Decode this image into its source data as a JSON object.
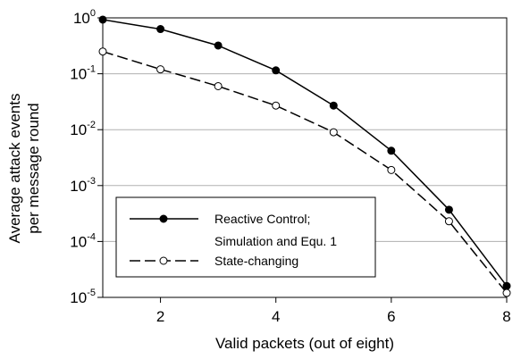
{
  "chart_data": {
    "type": "line",
    "title": "",
    "xlabel": "Valid packets (out of eight)",
    "ylabel_lines": [
      "Average attack events",
      "per message round"
    ],
    "x_ticks": [
      2,
      4,
      6,
      8
    ],
    "xlim": [
      1,
      8
    ],
    "y_scale": "log",
    "ylim": [
      1e-05,
      1
    ],
    "y_ticks": [
      {
        "value": 1,
        "base": "10",
        "exp": "0"
      },
      {
        "value": 0.1,
        "base": "10",
        "exp": "-1"
      },
      {
        "value": 0.01,
        "base": "10",
        "exp": "-2"
      },
      {
        "value": 0.001,
        "base": "10",
        "exp": "-3"
      },
      {
        "value": 0.0001,
        "base": "10",
        "exp": "-4"
      },
      {
        "value": 1e-05,
        "base": "10",
        "exp": "-5"
      }
    ],
    "grid": "horizontal",
    "legend_position": "bottom-left",
    "series": [
      {
        "name_lines": [
          "Reactive Control;",
          "Simulation and Equ. 1"
        ],
        "style": "solid",
        "marker": "filled-circle",
        "x": [
          1,
          2,
          3,
          4,
          5,
          6,
          7,
          8
        ],
        "values": [
          0.93,
          0.63,
          0.32,
          0.115,
          0.027,
          0.0042,
          0.00037,
          1.6e-05
        ]
      },
      {
        "name_lines": [
          "State-changing"
        ],
        "style": "dashed",
        "marker": "open-circle",
        "x": [
          1,
          2,
          3,
          4,
          5,
          6,
          7,
          8
        ],
        "values": [
          0.25,
          0.12,
          0.06,
          0.027,
          0.009,
          0.0019,
          0.00023,
          1.2e-05
        ]
      }
    ],
    "colors": {
      "line": "#000000",
      "grid": "#b0b0b0",
      "background": "#ffffff"
    }
  }
}
